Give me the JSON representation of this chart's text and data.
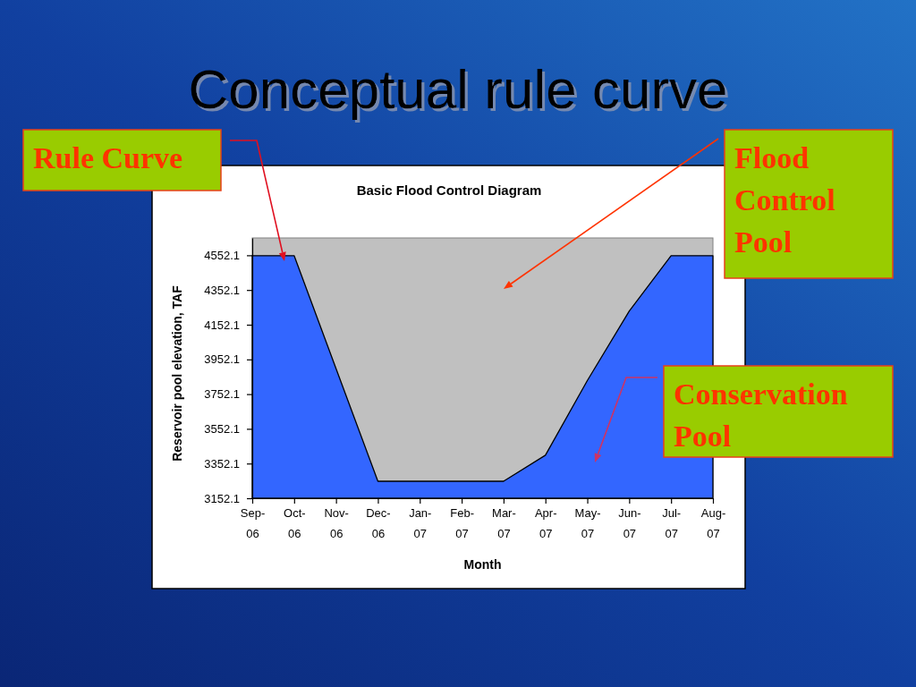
{
  "chart_data": {
    "type": "area",
    "title": "Conceptual rule curve",
    "subtitle": "Basic Flood Control Diagram",
    "xlabel": "Month",
    "ylabel": "Reservoir pool elevation, TAF",
    "categories": [
      "Sep-06",
      "Oct-06",
      "Nov-06",
      "Dec-06",
      "Jan-07",
      "Feb-07",
      "Mar-07",
      "Apr-07",
      "May-07",
      "Jun-07",
      "Jul-07",
      "Aug-07"
    ],
    "values": [
      4550,
      4550,
      3900,
      3250,
      3250,
      3250,
      3250,
      3400,
      3830,
      4230,
      4550,
      4550
    ],
    "color": "#3366ff",
    "ylim": [
      3152.1,
      4652.1
    ],
    "yticks": [
      3152.1,
      3352.1,
      3552.1,
      3752.1,
      3952.1,
      4152.1,
      4352.1,
      4552.1
    ],
    "annotations": [
      "Rule Curve",
      "Flood Control Pool",
      "Conservation Pool"
    ]
  }
}
